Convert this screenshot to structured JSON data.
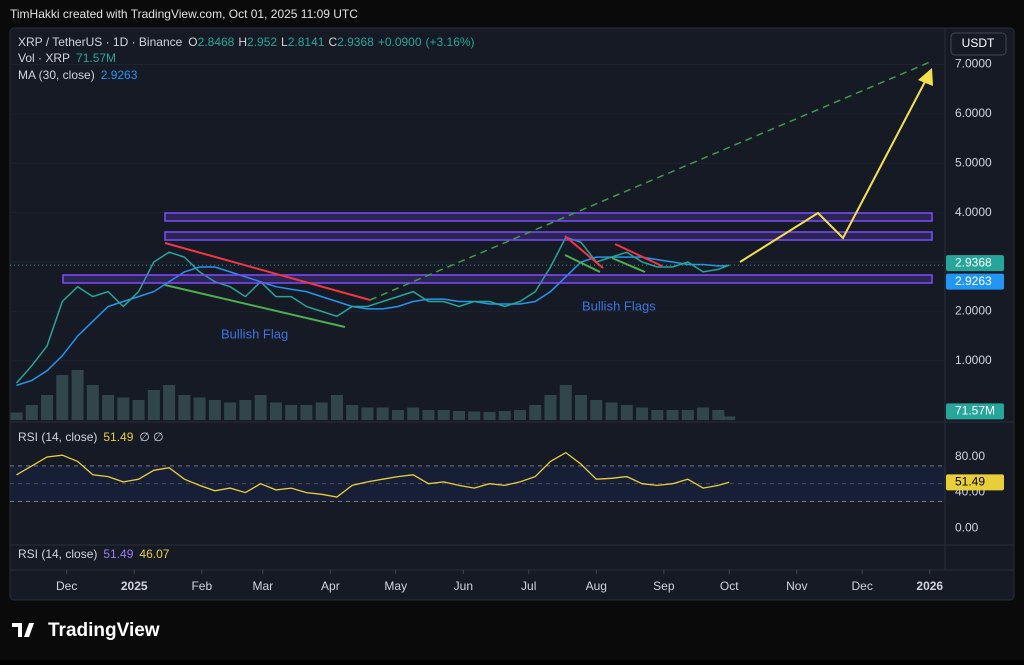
{
  "header": {
    "attribution": "TimHakki created with TradingView.com, Oct 01, 2025 11:09 UTC",
    "brand": "TradingView"
  },
  "chart_data": {
    "type": "line",
    "symbol": "XRP / TetherUS · 1D · Binance",
    "ohlc": [
      {
        "label": "O",
        "value": 2.8468
      },
      {
        "label": "H",
        "value": 2.952
      },
      {
        "label": "L",
        "value": 2.8141
      },
      {
        "label": "C",
        "value": 2.9368
      }
    ],
    "change": {
      "value": 0.09,
      "label": "+0.0900"
    },
    "change_pct": {
      "value": 3.16,
      "label": "(+3.16%)"
    },
    "currency": "USDT",
    "x": [
      7,
      14,
      21,
      28,
      35,
      42,
      49,
      56,
      63,
      70,
      77,
      84,
      91,
      98,
      105,
      112,
      119,
      126,
      133,
      140,
      147,
      154,
      161,
      168,
      175,
      182,
      189,
      196,
      203,
      210,
      217,
      224,
      231,
      238,
      245,
      252,
      259,
      266,
      273,
      280,
      287,
      294,
      301,
      308,
      315,
      322,
      329,
      334
    ],
    "xlim": [
      4,
      433
    ],
    "xticks": [
      {
        "value": 30,
        "label": "Dec"
      },
      {
        "value": 61,
        "label": "2025"
      },
      {
        "value": 92,
        "label": "Feb"
      },
      {
        "value": 120,
        "label": "Mar"
      },
      {
        "value": 151,
        "label": "Apr"
      },
      {
        "value": 181,
        "label": "May"
      },
      {
        "value": 212,
        "label": "Jun"
      },
      {
        "value": 242,
        "label": "Jul"
      },
      {
        "value": 273,
        "label": "Aug"
      },
      {
        "value": 304,
        "label": "Sep"
      },
      {
        "value": 334,
        "label": "Oct"
      },
      {
        "value": 365,
        "label": "Nov"
      },
      {
        "value": 395,
        "label": "Dec"
      },
      {
        "value": 426,
        "label": "2026"
      }
    ],
    "ylim": [
      -0.2,
      7.7
    ],
    "yticks": [
      {
        "value": 1,
        "label": "1.0000"
      },
      {
        "value": 2,
        "label": "2.0000"
      },
      {
        "value": 3,
        "label": "3.0000"
      },
      {
        "value": 4,
        "label": "4.0000"
      },
      {
        "value": 5,
        "label": "5.0000"
      },
      {
        "value": 6,
        "label": "6.0000"
      },
      {
        "value": 7,
        "label": "7.0000"
      }
    ],
    "close": {
      "color": "#26a69a",
      "values": [
        0.55,
        0.9,
        1.3,
        2.2,
        2.5,
        2.3,
        2.4,
        2.1,
        2.4,
        3.0,
        3.2,
        3.1,
        2.8,
        2.6,
        2.5,
        2.3,
        2.6,
        2.3,
        2.3,
        2.1,
        2.0,
        1.9,
        2.1,
        2.1,
        2.2,
        2.3,
        2.4,
        2.2,
        2.2,
        2.1,
        2.2,
        2.2,
        2.1,
        2.2,
        2.4,
        2.9,
        3.5,
        3.4,
        3.0,
        3.1,
        3.2,
        3.0,
        2.9,
        2.9,
        3.0,
        2.8,
        2.85,
        2.94
      ]
    },
    "ma": {
      "label": "MA (30, close)",
      "last": 2.9263,
      "color": "#2196f3",
      "values": [
        0.5,
        0.6,
        0.8,
        1.1,
        1.5,
        1.8,
        2.1,
        2.2,
        2.3,
        2.4,
        2.6,
        2.8,
        2.9,
        2.9,
        2.8,
        2.7,
        2.6,
        2.5,
        2.45,
        2.4,
        2.3,
        2.2,
        2.1,
        2.05,
        2.05,
        2.1,
        2.2,
        2.25,
        2.25,
        2.2,
        2.2,
        2.15,
        2.15,
        2.15,
        2.2,
        2.4,
        2.7,
        3.0,
        3.1,
        3.1,
        3.1,
        3.1,
        3.05,
        3.0,
        2.95,
        2.95,
        2.92,
        2.93
      ]
    },
    "volume": {
      "label": "Vol · XRP",
      "last": 71.57,
      "last_label": "71.57M",
      "vlim": [
        0,
        1200
      ],
      "color": "#3c5a5a",
      "values": [
        150,
        300,
        500,
        900,
        1000,
        700,
        500,
        450,
        400,
        600,
        700,
        500,
        450,
        400,
        350,
        400,
        500,
        350,
        300,
        300,
        350,
        500,
        300,
        250,
        250,
        200,
        250,
        200,
        200,
        180,
        170,
        160,
        180,
        200,
        300,
        500,
        700,
        500,
        400,
        350,
        300,
        250,
        200,
        200,
        200,
        250,
        200,
        71.57
      ]
    },
    "rsi": {
      "label": "RSI (14, close)",
      "last": 51.49,
      "extra": "∅ ∅",
      "color": "#e8cf3a",
      "ylim": [
        -19,
        116
      ],
      "yticks": [
        {
          "value": 0,
          "label": "0.00"
        },
        {
          "value": 40,
          "label": "40.00"
        },
        {
          "value": 80,
          "label": "80.00"
        }
      ],
      "bands": [
        30,
        50,
        70
      ],
      "values": [
        60,
        70,
        80,
        82,
        75,
        60,
        58,
        52,
        55,
        65,
        68,
        55,
        48,
        42,
        45,
        40,
        50,
        43,
        45,
        40,
        38,
        35,
        48,
        52,
        55,
        58,
        60,
        50,
        52,
        48,
        45,
        50,
        48,
        52,
        58,
        75,
        85,
        72,
        55,
        56,
        58,
        50,
        48,
        50,
        55,
        45,
        48,
        51.49
      ]
    },
    "rsi_lower": {
      "label": "RSI (14, close)",
      "values": [
        51.49,
        46.07
      ]
    },
    "annotations": [
      "Bullish Flag",
      "Bullish Flags"
    ]
  }
}
